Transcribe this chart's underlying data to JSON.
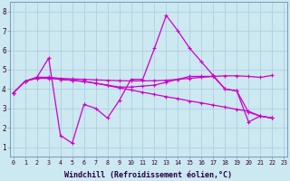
{
  "background_color": "#cce8f0",
  "grid_color": "#aaccdd",
  "line_color": "#cc00cc",
  "marker": "+",
  "marker_size": 3,
  "marker_lw": 0.8,
  "line_width": 0.9,
  "xlim": [
    -0.3,
    23.3
  ],
  "ylim": [
    0.5,
    8.5
  ],
  "xlabel": "Windchill (Refroidissement éolien,°C)",
  "xlabel_fontsize": 6.0,
  "xtick_fontsize": 4.8,
  "ytick_fontsize": 5.5,
  "xticks": [
    0,
    1,
    2,
    3,
    4,
    5,
    6,
    7,
    8,
    9,
    10,
    11,
    12,
    13,
    14,
    15,
    16,
    17,
    18,
    19,
    20,
    21,
    22,
    23
  ],
  "yticks": [
    1,
    2,
    3,
    4,
    5,
    6,
    7,
    8
  ],
  "s1_x": [
    0,
    1,
    2,
    3,
    4,
    5,
    6,
    7,
    8,
    9,
    10,
    11,
    12,
    13,
    14,
    15,
    16,
    17,
    18,
    19,
    20,
    21,
    22
  ],
  "s1_y": [
    3.8,
    4.4,
    4.6,
    5.6,
    1.6,
    1.2,
    3.2,
    3.0,
    2.5,
    3.4,
    4.5,
    4.5,
    6.1,
    7.8,
    7.0,
    6.1,
    5.4,
    4.7,
    4.0,
    3.9,
    2.3,
    2.6,
    2.5
  ],
  "s2_x": [
    0,
    1,
    2,
    3,
    4,
    5,
    6,
    7,
    8,
    9,
    10,
    11,
    12,
    13,
    14,
    15,
    16,
    17,
    18,
    19,
    20,
    21,
    22
  ],
  "s2_y": [
    3.8,
    4.4,
    4.6,
    4.6,
    4.55,
    4.52,
    4.5,
    4.47,
    4.45,
    4.43,
    4.42,
    4.42,
    4.43,
    4.45,
    4.5,
    4.55,
    4.6,
    4.65,
    4.68,
    4.68,
    4.65,
    4.6,
    4.7
  ],
  "s3_x": [
    0,
    1,
    2,
    3,
    4,
    5,
    6,
    7,
    8,
    9,
    10,
    11,
    12,
    13,
    14,
    15,
    16,
    17,
    18,
    19,
    20,
    21,
    22
  ],
  "s3_y": [
    3.8,
    4.4,
    4.6,
    4.6,
    4.5,
    4.45,
    4.38,
    4.3,
    4.18,
    4.06,
    3.95,
    3.83,
    3.72,
    3.6,
    3.5,
    3.38,
    3.28,
    3.17,
    3.06,
    2.95,
    2.85,
    2.6,
    2.5
  ],
  "s4_x": [
    0,
    1,
    2,
    3,
    4,
    5,
    6,
    7,
    8,
    9,
    10,
    11,
    12,
    13,
    14,
    15,
    16,
    17,
    18,
    19,
    20,
    21,
    22
  ],
  "s4_y": [
    3.8,
    4.4,
    4.55,
    4.55,
    4.5,
    4.45,
    4.4,
    4.3,
    4.2,
    4.1,
    4.1,
    4.15,
    4.2,
    4.35,
    4.5,
    4.65,
    4.65,
    4.65,
    4.0,
    3.9,
    2.8,
    2.6,
    2.5
  ]
}
